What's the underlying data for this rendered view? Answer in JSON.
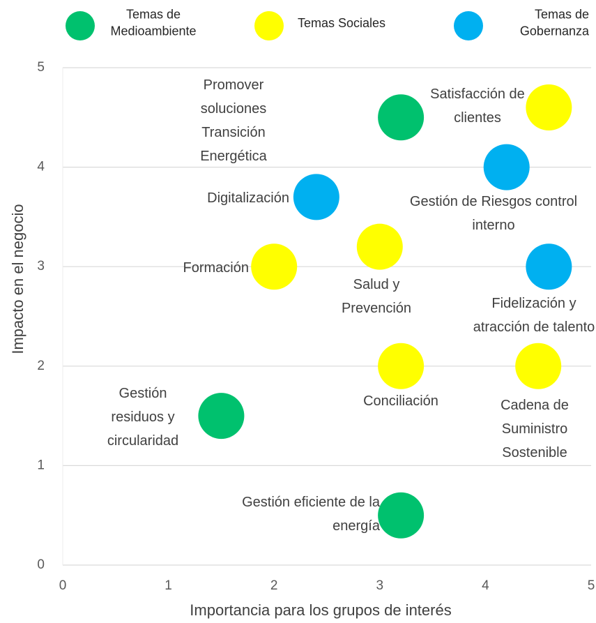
{
  "chart_data": {
    "type": "scatter",
    "xlabel": "Importancia para los grupos de interés",
    "ylabel": "Impacto en el negocio",
    "xlim": [
      0,
      5
    ],
    "xticks": [
      0,
      1,
      2,
      3,
      4,
      5
    ],
    "ylim": [
      0,
      5
    ],
    "yticks": [
      0,
      1,
      2,
      3,
      4,
      5
    ],
    "grid": true,
    "legend": "top",
    "series": [
      {
        "name": "Temas de Medioambiente",
        "color": "#00c16e",
        "x": [
          3.2,
          1.5,
          3.2
        ],
        "values": [
          4.5,
          1.5,
          0.5
        ],
        "labels": [
          "Promover soluciones Transición Energética",
          "Gestión residuos y circularidad",
          "Gestión eficiente de la energía"
        ]
      },
      {
        "name": "Temas Sociales",
        "color": "#ffff00",
        "x": [
          4.6,
          3.0,
          2.0,
          3.2,
          4.5
        ],
        "values": [
          4.6,
          3.2,
          3.0,
          2.0,
          2.0
        ],
        "labels": [
          "Satisfacción de clientes",
          "Salud y Prevención",
          "Formación",
          "Conciliación",
          "Cadena de Suministro Sostenible"
        ]
      },
      {
        "name": "Temas de Gobernanza",
        "color": "#00b0f0",
        "x": [
          2.4,
          4.2,
          4.6
        ],
        "values": [
          3.7,
          4.0,
          3.0
        ],
        "labels": [
          "Digitalización",
          "Gestión de Riesgos control interno",
          "Fidelización y atracción de talento"
        ]
      }
    ]
  }
}
